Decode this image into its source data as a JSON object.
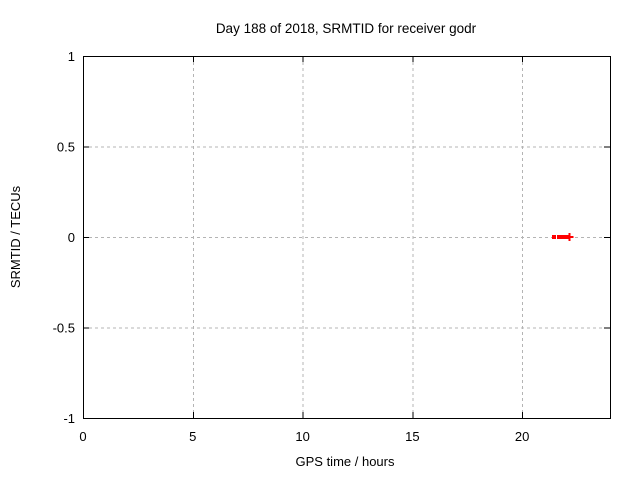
{
  "chart_data": {
    "type": "scatter",
    "title": "Day 188 of 2018, SRMTID for receiver godr",
    "xlabel": "GPS time / hours",
    "ylabel": "SRMTID / TECUs",
    "xlim": [
      0,
      24
    ],
    "ylim": [
      -1,
      1
    ],
    "xticks": {
      "values": [
        0,
        5,
        10,
        15,
        20
      ],
      "labels": [
        "0",
        "5",
        "10",
        "15",
        "20"
      ]
    },
    "yticks": {
      "values": [
        -1,
        -0.5,
        0,
        0.5,
        1
      ],
      "labels": [
        "-1",
        "-0.5",
        "0",
        "0.5",
        "1"
      ]
    },
    "grid": true,
    "legend": "none",
    "series": [
      {
        "marker": "filled-square",
        "color": "#ff0000",
        "points": [
          {
            "x": 21.45,
            "y": 0.0
          },
          {
            "x": 21.68,
            "y": 0.0
          },
          {
            "x": 21.77,
            "y": 0.0
          },
          {
            "x": 21.86,
            "y": 0.0
          },
          {
            "x": 21.95,
            "y": 0.0
          },
          {
            "x": 22.03,
            "y": 0.0
          }
        ]
      },
      {
        "marker": "plus",
        "color": "#ff0000",
        "points": [
          {
            "x": 22.15,
            "y": 0.0
          }
        ]
      }
    ]
  },
  "colors": {
    "background": "#ffffff",
    "border": "#000000",
    "grid": "#b4b4b4",
    "text": "#000000",
    "series": "#ff0000"
  }
}
